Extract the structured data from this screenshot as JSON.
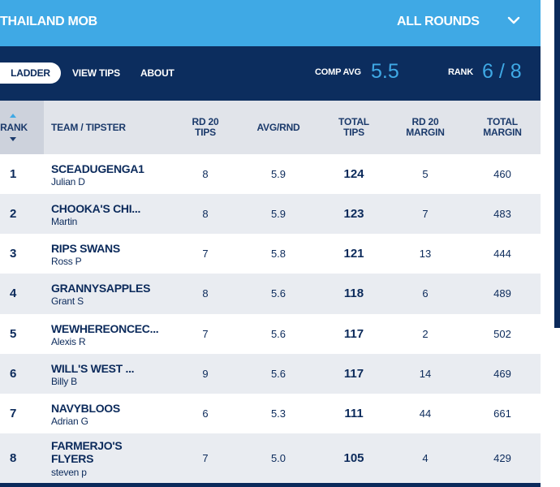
{
  "header": {
    "comp_name": "THAILAND MOB",
    "rounds_label": "ALL ROUNDS"
  },
  "nav": {
    "tabs": [
      {
        "label": "LADDER"
      },
      {
        "label": "VIEW TIPS"
      },
      {
        "label": "ABOUT"
      }
    ],
    "comp_avg_label": "COMP AVG",
    "comp_avg_value": "5.5",
    "rank_label": "RANK",
    "rank_value": "6 / 8"
  },
  "table": {
    "headers": {
      "rank": "RANK",
      "team": "TEAM / TIPSTER",
      "rd_tips_1": "RD 20",
      "rd_tips_2": "TIPS",
      "avg": "AVG/RND",
      "total_tips_1": "TOTAL",
      "total_tips_2": "TIPS",
      "rd_margin_1": "RD 20",
      "rd_margin_2": "MARGIN",
      "total_margin_1": "TOTAL",
      "total_margin_2": "MARGIN"
    },
    "rows": [
      {
        "rank": "1",
        "team": "SCEADUGENGA1",
        "tipster": "Julian D",
        "rd_tips": "8",
        "avg": "5.9",
        "total_tips": "124",
        "rd_margin": "5",
        "total_margin": "460"
      },
      {
        "rank": "2",
        "team": "CHOOKA'S CHI...",
        "tipster": "Martin",
        "rd_tips": "8",
        "avg": "5.9",
        "total_tips": "123",
        "rd_margin": "7",
        "total_margin": "483"
      },
      {
        "rank": "3",
        "team": "RIPS SWANS",
        "tipster": "Ross P",
        "rd_tips": "7",
        "avg": "5.8",
        "total_tips": "121",
        "rd_margin": "13",
        "total_margin": "444"
      },
      {
        "rank": "4",
        "team": "GRANNYSAPPLES",
        "tipster": "Grant S",
        "rd_tips": "8",
        "avg": "5.6",
        "total_tips": "118",
        "rd_margin": "6",
        "total_margin": "489"
      },
      {
        "rank": "5",
        "team": "WEWHEREONCEC...",
        "tipster": "Alexis R",
        "rd_tips": "7",
        "avg": "5.6",
        "total_tips": "117",
        "rd_margin": "2",
        "total_margin": "502"
      },
      {
        "rank": "6",
        "team": "WILL'S WEST ...",
        "tipster": "Billy B",
        "rd_tips": "9",
        "avg": "5.6",
        "total_tips": "117",
        "rd_margin": "14",
        "total_margin": "469"
      },
      {
        "rank": "7",
        "team": "NAVYBLOOS",
        "tipster": "Adrian G",
        "rd_tips": "6",
        "avg": "5.3",
        "total_tips": "111",
        "rd_margin": "44",
        "total_margin": "661"
      },
      {
        "rank": "8",
        "team_line1": "FARMERJO'S",
        "team_line2": "FLYERS",
        "tipster": "steven p",
        "rd_tips": "7",
        "avg": "5.0",
        "total_tips": "105",
        "rd_margin": "4",
        "total_margin": "429"
      }
    ]
  },
  "colors": {
    "accent": "#3fa9e5",
    "navy": "#0b2a5b",
    "row_alt": "#e9ecf1"
  },
  "icons": {
    "rounds_toggle": "chevron-down-icon",
    "sort": "sort-icon"
  }
}
